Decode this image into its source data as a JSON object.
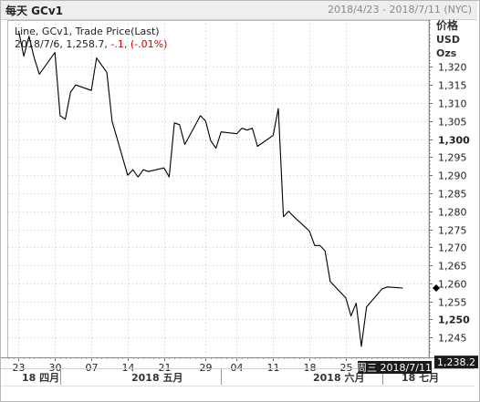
{
  "header": {
    "title": "每天 GCv1",
    "date_range": "2018/4/23 - 2018/7/11 (NYC)"
  },
  "legend": {
    "series_label": "Line, GCv1, Trade Price(Last)",
    "last_value_prefix": "2018/7/6, 1,258.7,",
    "change": "-.1,",
    "change_pct": "(-.01%)"
  },
  "axis_header": {
    "line1": "价格",
    "line2": "USD",
    "line3": "Ozs"
  },
  "cursor": {
    "date_label": "周三 2018/7/11",
    "price_label": "1,238.2",
    "price_value": 1238.2
  },
  "colors": {
    "line": "#000000",
    "grid": "#c8c8c8",
    "negative": "#d00000",
    "cursor_bg": "#1a1a1a"
  },
  "chart_data": {
    "type": "line",
    "series": [
      {
        "x": [
          "2018-04-23",
          "2018-04-24",
          "2018-04-25",
          "2018-04-26",
          "2018-04-27",
          "2018-04-30",
          "2018-05-01",
          "2018-05-02",
          "2018-05-03",
          "2018-05-04",
          "2018-05-07",
          "2018-05-08",
          "2018-05-09",
          "2018-05-10",
          "2018-05-11",
          "2018-05-14",
          "2018-05-15",
          "2018-05-16",
          "2018-05-17",
          "2018-05-18",
          "2018-05-21",
          "2018-05-22",
          "2018-05-23",
          "2018-05-24",
          "2018-05-25",
          "2018-05-28",
          "2018-05-29",
          "2018-05-30",
          "2018-05-31",
          "2018-06-01",
          "2018-06-04",
          "2018-06-05",
          "2018-06-06",
          "2018-06-07",
          "2018-06-08",
          "2018-06-11",
          "2018-06-12",
          "2018-06-13",
          "2018-06-14",
          "2018-06-15",
          "2018-06-18",
          "2018-06-19",
          "2018-06-20",
          "2018-06-21",
          "2018-06-22",
          "2018-06-25",
          "2018-06-26",
          "2018-06-27",
          "2018-06-28",
          "2018-06-29",
          "2018-07-02",
          "2018-07-03",
          "2018-07-05",
          "2018-07-06"
        ],
        "values": [
          1330.0,
          1323.0,
          1328.5,
          1322.5,
          1318.0,
          1324.0,
          1306.5,
          1305.5,
          1313.0,
          1315.0,
          1313.5,
          1322.5,
          1320.5,
          1318.5,
          1305.0,
          1290.0,
          1291.5,
          1289.5,
          1291.5,
          1291.0,
          1292.0,
          1289.5,
          1304.5,
          1304.0,
          1298.5,
          1306.5,
          1305.0,
          1299.5,
          1297.5,
          1302.0,
          1301.5,
          1303.0,
          1302.5,
          1303.0,
          1298.0,
          1301.0,
          1308.5,
          1278.5,
          1280.0,
          1278.5,
          1274.5,
          1270.5,
          1270.5,
          1269.0,
          1260.5,
          1256.0,
          1251.0,
          1254.5,
          1242.5,
          1253.5,
          1258.5,
          1259.0,
          1258.8,
          1258.7
        ]
      }
    ],
    "ylim": [
      1239.5,
      1333.0
    ],
    "y_ticks": [
      1245,
      1250,
      1255,
      1260,
      1265,
      1270,
      1275,
      1280,
      1285,
      1290,
      1295,
      1300,
      1305,
      1310,
      1315,
      1320
    ],
    "y_tick_labels": [
      "1,245",
      "1,250",
      "1,255",
      "1,260",
      "1,265",
      "1,270",
      "1,275",
      "1,280",
      "1,285",
      "1,290",
      "1,295",
      "1,300",
      "1,305",
      "1,310",
      "1,315",
      "1,320"
    ],
    "y_major": [
      1250,
      1300
    ],
    "x_ticks": [
      {
        "date": "2018-04-23",
        "label": "23"
      },
      {
        "date": "2018-04-30",
        "label": "30"
      },
      {
        "date": "2018-05-07",
        "label": "07"
      },
      {
        "date": "2018-05-14",
        "label": "14"
      },
      {
        "date": "2018-05-21",
        "label": "21"
      },
      {
        "date": "2018-05-29",
        "label": "29"
      },
      {
        "date": "2018-06-04",
        "label": "04"
      },
      {
        "date": "2018-06-11",
        "label": "11"
      },
      {
        "date": "2018-06-18",
        "label": "18"
      },
      {
        "date": "2018-06-25",
        "label": "25"
      }
    ],
    "month_labels": [
      {
        "date": "2018-04-23",
        "label": "18 四月"
      },
      {
        "date": "2018-05-14",
        "label": "2018 五月"
      },
      {
        "date": "2018-06-18",
        "label": "2018 六月"
      },
      {
        "date": "2018-07-05",
        "label": "18 七月"
      }
    ],
    "month_boundaries": [
      "2018-05-01",
      "2018-06-01",
      "2018-07-02"
    ],
    "x_range": [
      "2018-04-21",
      "2018-07-11"
    ],
    "grid": true
  }
}
